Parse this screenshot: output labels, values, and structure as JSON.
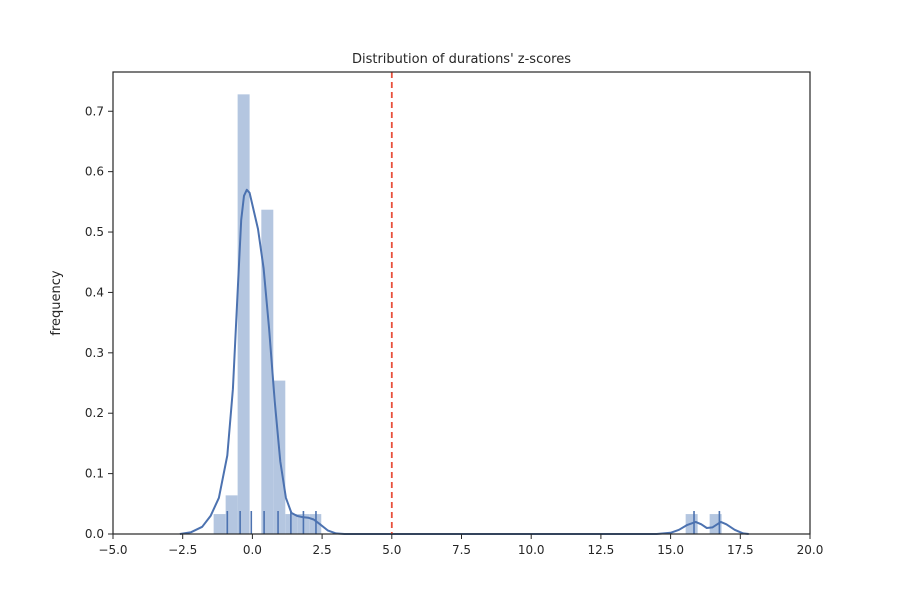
{
  "chart_data": {
    "type": "bar",
    "title": "Distribution of durations' z-scores",
    "xlabel": "",
    "ylabel": "frequency",
    "xlim": [
      -5.0,
      20.0
    ],
    "ylim": [
      0,
      0.765
    ],
    "grid": false,
    "legend": "none",
    "xticks": [
      {
        "value": -5.0,
        "label": "−5.0"
      },
      {
        "value": -2.5,
        "label": "−2.5"
      },
      {
        "value": 0.0,
        "label": "0.0"
      },
      {
        "value": 2.5,
        "label": "2.5"
      },
      {
        "value": 5.0,
        "label": "5.0"
      },
      {
        "value": 7.5,
        "label": "7.5"
      },
      {
        "value": 10.0,
        "label": "10.0"
      },
      {
        "value": 12.5,
        "label": "12.5"
      },
      {
        "value": 15.0,
        "label": "15.0"
      },
      {
        "value": 17.5,
        "label": "17.5"
      },
      {
        "value": 20.0,
        "label": "20.0"
      }
    ],
    "yticks": [
      {
        "value": 0.0,
        "label": "0.0"
      },
      {
        "value": 0.1,
        "label": "0.1"
      },
      {
        "value": 0.2,
        "label": "0.2"
      },
      {
        "value": 0.3,
        "label": "0.3"
      },
      {
        "value": 0.4,
        "label": "0.4"
      },
      {
        "value": 0.5,
        "label": "0.5"
      },
      {
        "value": 0.6,
        "label": "0.6"
      },
      {
        "value": 0.7,
        "label": "0.7"
      }
    ],
    "histogram": {
      "color": "#b4c6e0",
      "bins": [
        {
          "x0": -1.39,
          "x1": -0.96,
          "value": 0.033
        },
        {
          "x0": -0.96,
          "x1": -0.53,
          "value": 0.064
        },
        {
          "x0": -0.53,
          "x1": -0.1,
          "value": 0.728
        },
        {
          "x0": -0.1,
          "x1": 0.32,
          "value": 0.0
        },
        {
          "x0": 0.32,
          "x1": 0.75,
          "value": 0.537
        },
        {
          "x0": 0.75,
          "x1": 1.18,
          "value": 0.254
        },
        {
          "x0": 1.18,
          "x1": 1.61,
          "value": 0.033
        },
        {
          "x0": 1.61,
          "x1": 2.04,
          "value": 0.033
        },
        {
          "x0": 2.04,
          "x1": 2.47,
          "value": 0.033
        },
        {
          "x0": 15.54,
          "x1": 15.97,
          "value": 0.033
        },
        {
          "x0": 16.4,
          "x1": 16.83,
          "value": 0.033
        }
      ]
    },
    "kde": {
      "color": "#4c72b0",
      "x": [
        -2.6,
        -2.2,
        -1.8,
        -1.5,
        -1.2,
        -0.9,
        -0.7,
        -0.5,
        -0.4,
        -0.3,
        -0.2,
        -0.1,
        0.0,
        0.2,
        0.4,
        0.6,
        0.8,
        1.0,
        1.2,
        1.4,
        1.6,
        1.8,
        2.0,
        2.2,
        2.4,
        2.7,
        3.0,
        3.3,
        4.0,
        6.0,
        10.0,
        14.5,
        15.0,
        15.3,
        15.6,
        15.9,
        16.1,
        16.3,
        16.5,
        16.8,
        17.0,
        17.3,
        17.6,
        17.8
      ],
      "y": [
        0.0,
        0.003,
        0.012,
        0.03,
        0.06,
        0.13,
        0.24,
        0.43,
        0.52,
        0.56,
        0.57,
        0.565,
        0.545,
        0.505,
        0.44,
        0.34,
        0.22,
        0.12,
        0.06,
        0.035,
        0.03,
        0.028,
        0.027,
        0.024,
        0.017,
        0.006,
        0.001,
        0.0,
        0.0,
        0.0,
        0.0,
        0.0,
        0.002,
        0.007,
        0.015,
        0.02,
        0.016,
        0.01,
        0.011,
        0.02,
        0.016,
        0.007,
        0.001,
        0.0
      ]
    },
    "rug": {
      "color": "#4c72b0",
      "x": [
        -0.9,
        -0.44,
        -0.04,
        0.42,
        0.92,
        1.38,
        1.83,
        2.28,
        15.84,
        16.75
      ]
    },
    "vline": {
      "x": 5.0,
      "color": "#e8503c",
      "style": "dashed"
    }
  }
}
